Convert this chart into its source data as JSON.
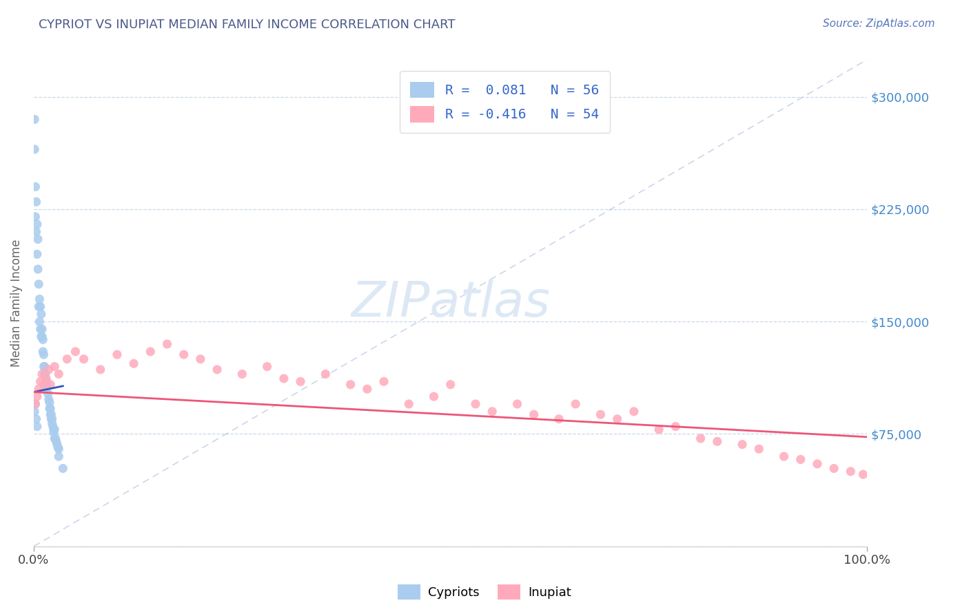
{
  "title": "CYPRIOT VS INUPIAT MEDIAN FAMILY INCOME CORRELATION CHART",
  "source_text": "Source: ZipAtlas.com",
  "ylabel": "Median Family Income",
  "xlim": [
    0.0,
    1.0
  ],
  "ylim": [
    0,
    325000
  ],
  "yticks": [
    0,
    75000,
    150000,
    225000,
    300000
  ],
  "ytick_labels": [
    "",
    "$75,000",
    "$150,000",
    "$225,000",
    "$300,000"
  ],
  "xtick_labels": [
    "0.0%",
    "100.0%"
  ],
  "grid_color": "#c8d8e8",
  "background_color": "#ffffff",
  "title_color": "#4a5a8a",
  "source_color": "#5577bb",
  "axis_label_color": "#666666",
  "tick_label_color_right": "#4488cc",
  "diagonal_color": "#aabbdd",
  "cypriot_color": "#aaccee",
  "inupiat_color": "#ffaabb",
  "cypriot_trend_color": "#3355bb",
  "inupiat_trend_color": "#ee5577",
  "legend_R_color": "#3366cc",
  "legend_text_color": "#333333",
  "legend_label1": "R =  0.081   N = 56",
  "legend_label2": "R = -0.416   N = 54",
  "watermark_color": "#dde8f5",
  "cypriot_x": [
    0.001,
    0.001,
    0.002,
    0.002,
    0.003,
    0.003,
    0.004,
    0.004,
    0.005,
    0.005,
    0.006,
    0.006,
    0.007,
    0.007,
    0.008,
    0.008,
    0.009,
    0.009,
    0.01,
    0.01,
    0.011,
    0.011,
    0.012,
    0.012,
    0.013,
    0.013,
    0.014,
    0.015,
    0.015,
    0.016,
    0.017,
    0.018,
    0.019,
    0.019,
    0.02,
    0.02,
    0.021,
    0.021,
    0.022,
    0.022,
    0.023,
    0.024,
    0.024,
    0.025,
    0.025,
    0.026,
    0.027,
    0.028,
    0.029,
    0.03,
    0.001,
    0.002,
    0.003,
    0.004,
    0.03,
    0.035
  ],
  "cypriot_y": [
    285000,
    265000,
    240000,
    220000,
    230000,
    210000,
    215000,
    195000,
    205000,
    185000,
    175000,
    160000,
    165000,
    150000,
    160000,
    145000,
    155000,
    140000,
    145000,
    140000,
    138000,
    130000,
    128000,
    120000,
    120000,
    115000,
    115000,
    110000,
    105000,
    108000,
    102000,
    98000,
    96000,
    92000,
    92000,
    88000,
    88000,
    85000,
    85000,
    82000,
    80000,
    78000,
    76000,
    78000,
    72000,
    72000,
    70000,
    68000,
    66000,
    65000,
    90000,
    95000,
    85000,
    80000,
    60000,
    52000
  ],
  "inupiat_x": [
    0.002,
    0.004,
    0.006,
    0.008,
    0.01,
    0.012,
    0.015,
    0.018,
    0.02,
    0.025,
    0.03,
    0.04,
    0.05,
    0.06,
    0.08,
    0.1,
    0.12,
    0.14,
    0.16,
    0.18,
    0.2,
    0.22,
    0.25,
    0.28,
    0.3,
    0.32,
    0.35,
    0.38,
    0.4,
    0.42,
    0.45,
    0.48,
    0.5,
    0.53,
    0.55,
    0.58,
    0.6,
    0.63,
    0.65,
    0.68,
    0.7,
    0.72,
    0.75,
    0.77,
    0.8,
    0.82,
    0.85,
    0.87,
    0.9,
    0.92,
    0.94,
    0.96,
    0.98,
    0.995
  ],
  "inupiat_y": [
    95000,
    100000,
    105000,
    110000,
    115000,
    108000,
    112000,
    118000,
    108000,
    120000,
    115000,
    125000,
    130000,
    125000,
    118000,
    128000,
    122000,
    130000,
    135000,
    128000,
    125000,
    118000,
    115000,
    120000,
    112000,
    110000,
    115000,
    108000,
    105000,
    110000,
    95000,
    100000,
    108000,
    95000,
    90000,
    95000,
    88000,
    85000,
    95000,
    88000,
    85000,
    90000,
    78000,
    80000,
    72000,
    70000,
    68000,
    65000,
    60000,
    58000,
    55000,
    52000,
    50000,
    48000
  ],
  "inupiat_trend_x0": 0.0,
  "inupiat_trend_y0": 103000,
  "inupiat_trend_x1": 1.0,
  "inupiat_trend_y1": 73000,
  "cypriot_trend_x0": 0.0,
  "cypriot_trend_y0": 103000,
  "cypriot_trend_x1": 0.035,
  "cypriot_trend_y1": 107000
}
